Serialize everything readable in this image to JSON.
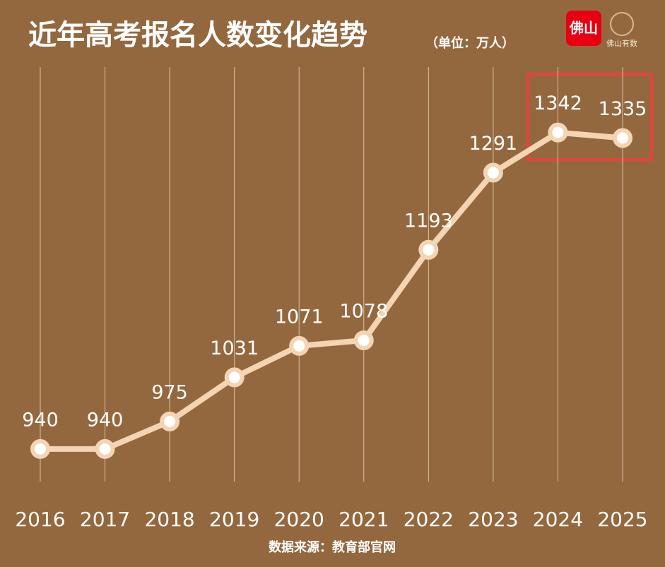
{
  "chart_data": {
    "type": "line",
    "title": "近年高考报名人数变化趋势",
    "subtitle": "（单位：万人）",
    "categories": [
      "2016",
      "2017",
      "2018",
      "2019",
      "2020",
      "2021",
      "2022",
      "2023",
      "2024",
      "2025"
    ],
    "values": [
      940,
      940,
      975,
      1031,
      1071,
      1078,
      1193,
      1291,
      1342,
      1335
    ],
    "color": "#f3d5b3",
    "ylim": [
      800,
      1400
    ],
    "grid": true,
    "source": "数据来源：教育部官网",
    "logo": {
      "left": "佛山",
      "right": "佛山有数"
    }
  }
}
